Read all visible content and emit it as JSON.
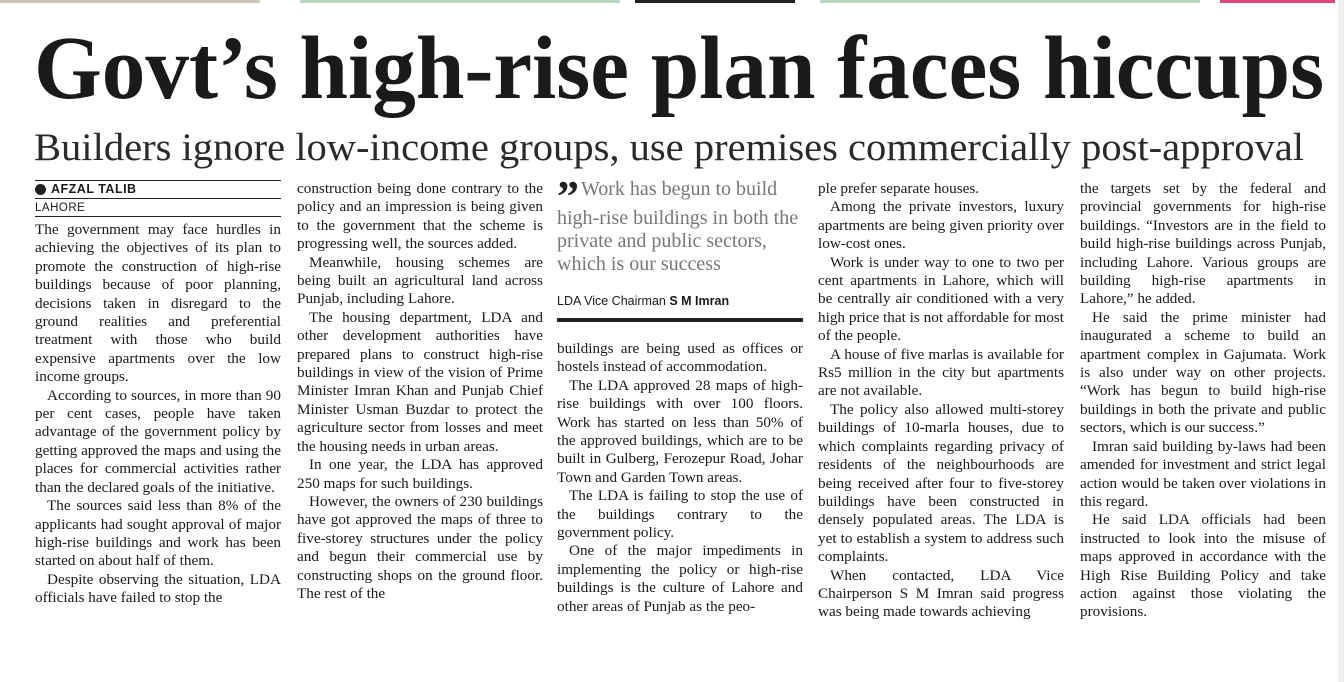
{
  "headline": "Govt’s high-rise plan faces hiccups",
  "subheadline": "Builders ignore low-income groups, use premises commercially post-approval",
  "byline": {
    "author": "AFZAL TALIB",
    "location": "LAHORE"
  },
  "pull_quote": {
    "text": "Work has begun to build high-rise buildings in both the private and public sectors, which is our success",
    "title": "LDA Vice Chairman",
    "name": "S M Imran"
  },
  "columns": [
    {
      "paragraphs": [
        "The government may face hurdles in achieving the objectives of its plan to promote the construction of high-rise buildings because of poor planning, decisions taken in disregard to the ground realities and preferential treatment with those who build expensive apartments over the low income groups.",
        "According to sources, in more than 90 per cent cases, people have taken advantage of the government policy by getting approved the maps and using the places for commercial activities rather than the declared goals of the initiative.",
        "The sources said less than 8% of the applicants had sought approval of major high-rise buildings and work has been started on about half of them.",
        "Despite observing the situation, LDA officials have failed to stop the"
      ]
    },
    {
      "paragraphs": [
        "construction being done contrary to the policy and an impression is being given to the government that the scheme is progressing well, the sources added.",
        "Meanwhile, housing schemes are being built an agricultural land across Punjab, including Lahore.",
        "The housing department, LDA and other development authorities have prepared plans to construct high-rise buildings in view of the vision of Prime Minister Imran Khan and Punjab Chief Minister Usman Buzdar to protect the agriculture sector from losses and meet the housing needs in urban areas.",
        "In one year, the LDA has approved 250 maps for such buildings.",
        "However, the owners of 230 buildings have got approved the maps of three to five-storey structures under the policy and begun their commercial use by constructing shops on the ground floor. The rest of the"
      ]
    },
    {
      "paragraphs": [
        "buildings are being used as offices or hostels instead of accommodation.",
        "The LDA approved 28 maps of high-rise buildings with over 100 floors. Work has started on less than 50% of the approved buildings, which are to be built in Gulberg, Ferozepur Road, Johar Town and Garden Town areas.",
        "The LDA is failing to stop the use of the buildings contrary to the government policy.",
        "One of the major impediments in implementing the policy or high-rise buildings is the culture of Lahore and other areas of Punjab as the peo-"
      ]
    },
    {
      "paragraphs": [
        "ple prefer separate houses.",
        "Among the private investors, luxury apartments are being given priority over low-cost ones.",
        "Work is under way to one to two per cent apartments in Lahore, which will be centrally air conditioned with a very high price that is not affordable for most of the people.",
        "A house of five marlas is available for Rs5 million in the city but apartments are not available.",
        "The policy also allowed multi-storey buildings of 10-marla houses, due to which complaints regarding privacy of residents of the neighbourhoods are being received after four to five-storey buildings have been constructed in densely populated areas. The LDA is yet to establish a system to address such complaints.",
        "When contacted, LDA Vice Chairperson S M Imran said progress was being made towards achieving"
      ]
    },
    {
      "paragraphs": [
        "the targets set by the federal and provincial governments for high-rise buildings. “Investors are in the field to build high-rise buildings across Punjab, including Lahore. Various groups are building high-rise apartments in Lahore,” he added.",
        "He said the prime minister had inaugurated a scheme to build an apartment complex in Gajumata. Work is also under way on other projects. “Work has begun to build high-rise buildings in both the private and public sectors, which is our success.”",
        "Imran said building by-laws had been amended for investment and strict legal action would be taken over violations in this regard.",
        "He said LDA officials had been instructed to look into the misuse of maps approved in accordance with the High Rise Building Policy and take action against those violating the provisions."
      ]
    }
  ]
}
